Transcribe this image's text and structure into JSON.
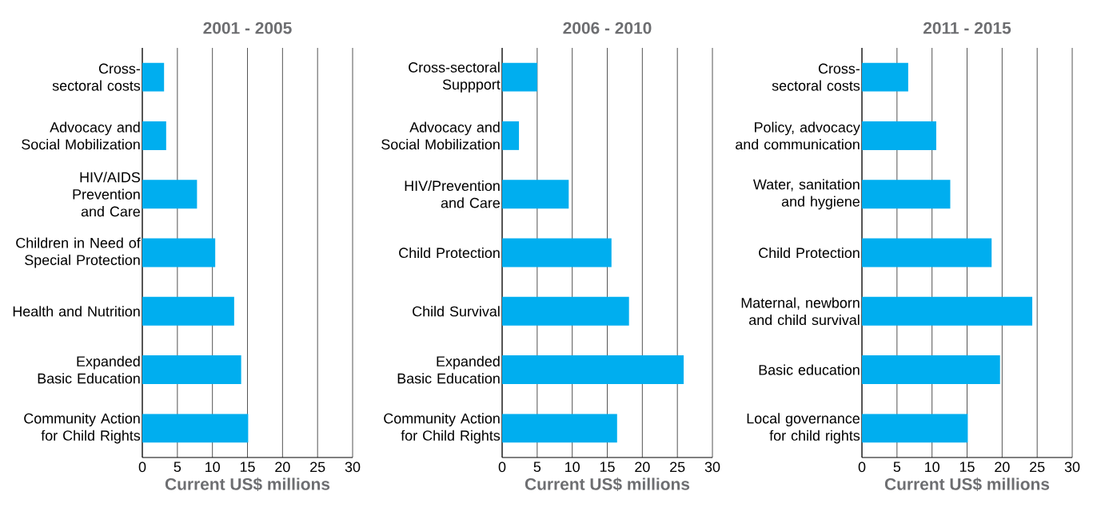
{
  "chart_data": [
    {
      "type": "bar",
      "orientation": "horizontal",
      "title": "2001 - 2005",
      "xlabel": "Current US$ millions",
      "categories": [
        "Cross-sectoral costs",
        "Advocacy and Social Mobilization",
        "HIV/AIDS Prevention and Care",
        "Children in Need of Special Protection",
        "Health and Nutrition",
        "Expanded Basic Education",
        "Community Action for Child Rights"
      ],
      "values": [
        3.1,
        3.4,
        7.8,
        10.4,
        13.1,
        14.1,
        15.1
      ],
      "color": "#00aeef",
      "xlim": [
        0,
        30
      ],
      "xticks": [
        0,
        5,
        10,
        15,
        20,
        25,
        30
      ],
      "grid": "x"
    },
    {
      "type": "bar",
      "orientation": "horizontal",
      "title": "2006 - 2010",
      "xlabel": "Current US$ millions",
      "categories": [
        "Cross-sectoral Suppport",
        "Advocacy and Social Mobilization",
        "HIV/Prevention and Care",
        "Child Protection",
        "Child Survival",
        "Expanded Basic Education",
        "Community Action for Child Rights"
      ],
      "values": [
        5.0,
        2.4,
        9.5,
        15.6,
        18.1,
        25.9,
        16.4
      ],
      "color": "#00aeef",
      "xlim": [
        0,
        30
      ],
      "xticks": [
        0,
        5,
        10,
        15,
        20,
        25,
        30
      ],
      "grid": "x"
    },
    {
      "type": "bar",
      "orientation": "horizontal",
      "title": "2011 - 2015",
      "xlabel": "Current US$ millions",
      "categories": [
        "Cross-sectoral costs",
        "Policy, advocacy and communication",
        "Water, sanitation and hygiene",
        "Child Protection",
        "Maternal, newborn and child survival",
        "Basic education",
        "Local governance for child rights"
      ],
      "values": [
        6.6,
        10.6,
        12.6,
        18.5,
        24.3,
        19.7,
        15.1
      ],
      "color": "#00aeef",
      "xlim": [
        0,
        30
      ],
      "xticks": [
        0,
        5,
        10,
        15,
        20,
        25,
        30
      ],
      "grid": "x"
    }
  ]
}
